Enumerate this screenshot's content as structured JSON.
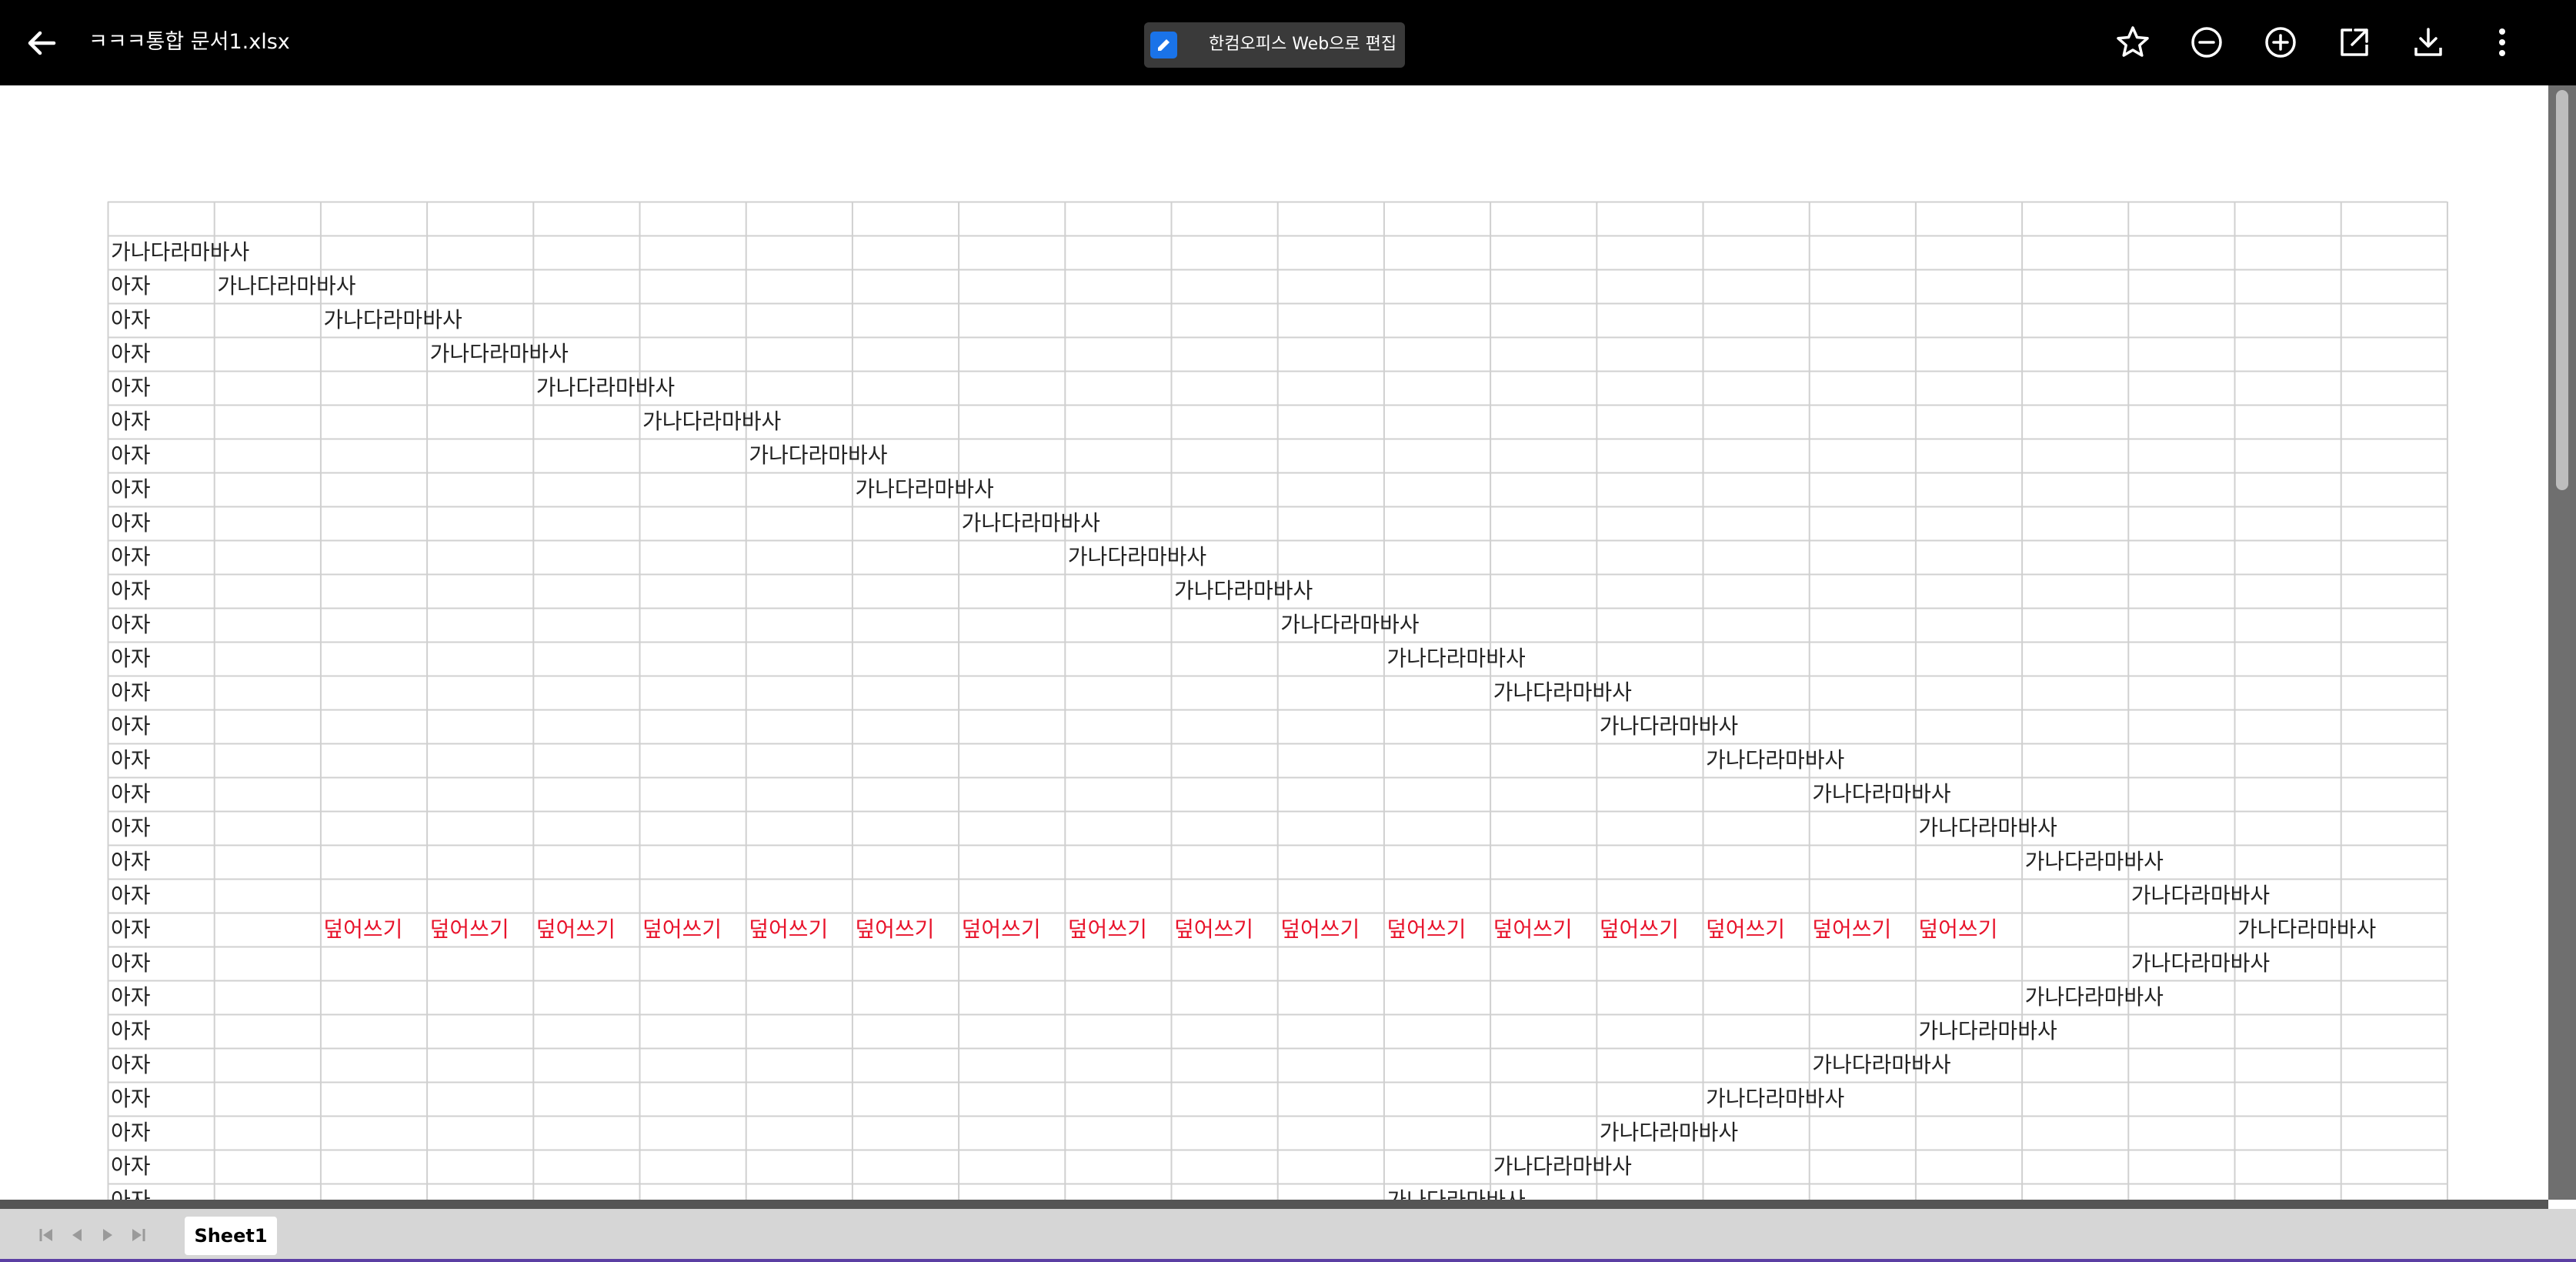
{
  "header": {
    "title": "ㅋㅋㅋ통합 문서1.xlsx",
    "edit_button_label": "한컴오피스 Web으로 편집",
    "icons": [
      "back-arrow-icon",
      "pencil-icon",
      "star-icon",
      "zoom-out-icon",
      "zoom-in-icon",
      "open-external-icon",
      "download-icon",
      "more-vert-icon"
    ]
  },
  "sheet": {
    "colors": {
      "grid_line": "#d0d0d0",
      "text": "#222222",
      "overwrite_text": "#e8132b"
    },
    "cells": [
      {
        "r": 1,
        "c": 0,
        "v": "가나다라마바사"
      },
      {
        "r": 2,
        "c": 0,
        "v": "아자"
      },
      {
        "r": 2,
        "c": 1,
        "v": "가나다라마바사"
      },
      {
        "r": 3,
        "c": 0,
        "v": "아자"
      },
      {
        "r": 3,
        "c": 2,
        "v": "가나다라마바사"
      },
      {
        "r": 4,
        "c": 0,
        "v": "아자"
      },
      {
        "r": 4,
        "c": 3,
        "v": "가나다라마바사"
      },
      {
        "r": 5,
        "c": 0,
        "v": "아자"
      },
      {
        "r": 5,
        "c": 4,
        "v": "가나다라마바사"
      },
      {
        "r": 6,
        "c": 0,
        "v": "아자"
      },
      {
        "r": 6,
        "c": 5,
        "v": "가나다라마바사"
      },
      {
        "r": 7,
        "c": 0,
        "v": "아자"
      },
      {
        "r": 7,
        "c": 6,
        "v": "가나다라마바사"
      },
      {
        "r": 8,
        "c": 0,
        "v": "아자"
      },
      {
        "r": 8,
        "c": 7,
        "v": "가나다라마바사"
      },
      {
        "r": 9,
        "c": 0,
        "v": "아자"
      },
      {
        "r": 9,
        "c": 8,
        "v": "가나다라마바사"
      },
      {
        "r": 10,
        "c": 0,
        "v": "아자"
      },
      {
        "r": 10,
        "c": 9,
        "v": "가나다라마바사"
      },
      {
        "r": 11,
        "c": 0,
        "v": "아자"
      },
      {
        "r": 11,
        "c": 10,
        "v": "가나다라마바사"
      },
      {
        "r": 12,
        "c": 0,
        "v": "아자"
      },
      {
        "r": 12,
        "c": 11,
        "v": "가나다라마바사"
      },
      {
        "r": 13,
        "c": 0,
        "v": "아자"
      },
      {
        "r": 13,
        "c": 12,
        "v": "가나다라마바사"
      },
      {
        "r": 14,
        "c": 0,
        "v": "아자"
      },
      {
        "r": 14,
        "c": 13,
        "v": "가나다라마바사"
      },
      {
        "r": 15,
        "c": 0,
        "v": "아자"
      },
      {
        "r": 15,
        "c": 14,
        "v": "가나다라마바사"
      },
      {
        "r": 16,
        "c": 0,
        "v": "아자"
      },
      {
        "r": 16,
        "c": 15,
        "v": "가나다라마바사"
      },
      {
        "r": 17,
        "c": 0,
        "v": "아자"
      },
      {
        "r": 17,
        "c": 16,
        "v": "가나다라마바사"
      },
      {
        "r": 18,
        "c": 0,
        "v": "아자"
      },
      {
        "r": 18,
        "c": 17,
        "v": "가나다라마바사"
      },
      {
        "r": 19,
        "c": 0,
        "v": "아자"
      },
      {
        "r": 19,
        "c": 18,
        "v": "가나다라마바사"
      },
      {
        "r": 20,
        "c": 0,
        "v": "아자"
      },
      {
        "r": 20,
        "c": 19,
        "v": "가나다라마바사"
      },
      {
        "r": 21,
        "c": 0,
        "v": "아자"
      },
      {
        "r": 21,
        "c": 2,
        "v": "덮어쓰기",
        "red": true
      },
      {
        "r": 21,
        "c": 3,
        "v": "덮어쓰기",
        "red": true
      },
      {
        "r": 21,
        "c": 4,
        "v": "덮어쓰기",
        "red": true
      },
      {
        "r": 21,
        "c": 5,
        "v": "덮어쓰기",
        "red": true
      },
      {
        "r": 21,
        "c": 6,
        "v": "덮어쓰기",
        "red": true
      },
      {
        "r": 21,
        "c": 7,
        "v": "덮어쓰기",
        "red": true
      },
      {
        "r": 21,
        "c": 8,
        "v": "덮어쓰기",
        "red": true
      },
      {
        "r": 21,
        "c": 9,
        "v": "덮어쓰기",
        "red": true
      },
      {
        "r": 21,
        "c": 10,
        "v": "덮어쓰기",
        "red": true
      },
      {
        "r": 21,
        "c": 11,
        "v": "덮어쓰기",
        "red": true
      },
      {
        "r": 21,
        "c": 12,
        "v": "덮어쓰기",
        "red": true
      },
      {
        "r": 21,
        "c": 13,
        "v": "덮어쓰기",
        "red": true
      },
      {
        "r": 21,
        "c": 14,
        "v": "덮어쓰기",
        "red": true
      },
      {
        "r": 21,
        "c": 15,
        "v": "덮어쓰기",
        "red": true
      },
      {
        "r": 21,
        "c": 16,
        "v": "덮어쓰기",
        "red": true
      },
      {
        "r": 21,
        "c": 17,
        "v": "덮어쓰기",
        "red": true
      },
      {
        "r": 21,
        "c": 20,
        "v": "가나다라마바사"
      },
      {
        "r": 22,
        "c": 0,
        "v": "아자"
      },
      {
        "r": 22,
        "c": 19,
        "v": "가나다라마바사"
      },
      {
        "r": 23,
        "c": 0,
        "v": "아자"
      },
      {
        "r": 23,
        "c": 18,
        "v": "가나다라마바사"
      },
      {
        "r": 24,
        "c": 0,
        "v": "아자"
      },
      {
        "r": 24,
        "c": 17,
        "v": "가나다라마바사"
      },
      {
        "r": 25,
        "c": 0,
        "v": "아자"
      },
      {
        "r": 25,
        "c": 16,
        "v": "가나다라마바사"
      },
      {
        "r": 26,
        "c": 0,
        "v": "아자"
      },
      {
        "r": 26,
        "c": 15,
        "v": "가나다라마바사"
      },
      {
        "r": 27,
        "c": 0,
        "v": "아자"
      },
      {
        "r": 27,
        "c": 14,
        "v": "가나다라마바사"
      },
      {
        "r": 28,
        "c": 0,
        "v": "아자"
      },
      {
        "r": 28,
        "c": 13,
        "v": "가나다라마바사"
      },
      {
        "r": 29,
        "c": 0,
        "v": "아자"
      },
      {
        "r": 29,
        "c": 12,
        "v": "가나다라마바사"
      }
    ]
  },
  "footer": {
    "sheet_tab": "Sheet1",
    "nav_icons": [
      "first-sheet-icon",
      "prev-sheet-icon",
      "next-sheet-icon",
      "last-sheet-icon"
    ]
  }
}
